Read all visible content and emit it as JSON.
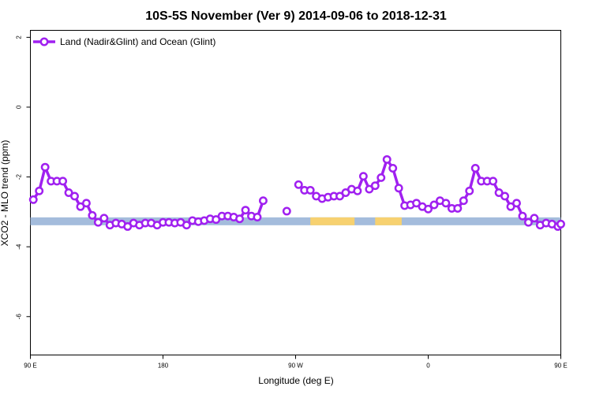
{
  "chart_data": {
    "type": "line",
    "title": "10S-5S November (Ver 9)   2014-09-06 to 2018-12-31",
    "xlabel": "Longitude (deg E)",
    "ylabel": "XCO2 - MLO trend (ppm)",
    "xlim": [
      90,
      450
    ],
    "ylim": [
      -7.1,
      2.2
    ],
    "y_ticks": [
      2,
      0,
      -2,
      -4,
      -6
    ],
    "x_ticks": [
      {
        "value": 90,
        "label": "90 E"
      },
      {
        "value": 180,
        "label": "180"
      },
      {
        "value": 270,
        "label": "90 W"
      },
      {
        "value": 360,
        "label": "0"
      },
      {
        "value": 450,
        "label": "90 E"
      },
      {
        "value": 540,
        "label": "180"
      }
    ],
    "legend": {
      "position": "top-left",
      "label": "Land (Nadir&Glint) and Ocean (Glint)"
    },
    "line_color": "#a020f0",
    "land_ocean_band": {
      "y": -3.27,
      "ocean_color": "#a4bcdc",
      "land_color": "#f7d170",
      "land_segments": [
        [
          280,
          310
        ],
        [
          324,
          342
        ]
      ]
    },
    "series": [
      {
        "name": "Land (Nadir&Glint) and Ocean (Glint)",
        "segments": [
          [
            [
              92,
              -2.65
            ],
            [
              96,
              -2.4
            ],
            [
              100,
              -1.72
            ],
            [
              104,
              -2.12
            ],
            [
              108,
              -2.12
            ],
            [
              112,
              -2.12
            ],
            [
              116,
              -2.45
            ],
            [
              120,
              -2.55
            ],
            [
              124,
              -2.85
            ],
            [
              128,
              -2.75
            ],
            [
              132,
              -3.1
            ],
            [
              136,
              -3.3
            ],
            [
              140,
              -3.18
            ],
            [
              144,
              -3.38
            ],
            [
              148,
              -3.32
            ],
            [
              152,
              -3.35
            ],
            [
              156,
              -3.42
            ],
            [
              160,
              -3.32
            ],
            [
              164,
              -3.38
            ],
            [
              168,
              -3.32
            ],
            [
              172,
              -3.32
            ],
            [
              176,
              -3.38
            ],
            [
              180,
              -3.3
            ],
            [
              184,
              -3.3
            ],
            [
              188,
              -3.32
            ],
            [
              192,
              -3.3
            ],
            [
              196,
              -3.38
            ],
            [
              200,
              -3.25
            ],
            [
              204,
              -3.28
            ],
            [
              208,
              -3.25
            ],
            [
              212,
              -3.2
            ],
            [
              216,
              -3.22
            ],
            [
              220,
              -3.12
            ],
            [
              224,
              -3.12
            ],
            [
              228,
              -3.15
            ],
            [
              232,
              -3.2
            ],
            [
              236,
              -2.95
            ],
            [
              240,
              -3.12
            ],
            [
              244,
              -3.15
            ],
            [
              248,
              -2.68
            ]
          ],
          [
            [
              264,
              -2.98
            ]
          ],
          [
            [
              272,
              -2.22
            ],
            [
              276,
              -2.38
            ],
            [
              280,
              -2.38
            ],
            [
              284,
              -2.55
            ],
            [
              288,
              -2.62
            ],
            [
              292,
              -2.58
            ],
            [
              296,
              -2.55
            ],
            [
              300,
              -2.55
            ],
            [
              304,
              -2.45
            ],
            [
              308,
              -2.35
            ],
            [
              312,
              -2.4
            ],
            [
              316,
              -1.98
            ],
            [
              320,
              -2.35
            ],
            [
              324,
              -2.25
            ],
            [
              328,
              -2.02
            ],
            [
              332,
              -1.5
            ],
            [
              336,
              -1.75
            ],
            [
              340,
              -2.32
            ],
            [
              344,
              -2.82
            ],
            [
              348,
              -2.8
            ],
            [
              352,
              -2.75
            ],
            [
              356,
              -2.85
            ],
            [
              360,
              -2.92
            ],
            [
              364,
              -2.8
            ],
            [
              368,
              -2.68
            ],
            [
              372,
              -2.75
            ],
            [
              376,
              -2.9
            ],
            [
              380,
              -2.9
            ],
            [
              384,
              -2.68
            ],
            [
              388,
              -2.4
            ],
            [
              392,
              -1.75
            ],
            [
              396,
              -2.12
            ],
            [
              400,
              -2.12
            ],
            [
              404,
              -2.12
            ],
            [
              408,
              -2.45
            ],
            [
              412,
              -2.55
            ],
            [
              416,
              -2.85
            ],
            [
              420,
              -2.75
            ],
            [
              424,
              -3.12
            ],
            [
              428,
              -3.3
            ],
            [
              432,
              -3.18
            ],
            [
              436,
              -3.38
            ],
            [
              440,
              -3.32
            ],
            [
              444,
              -3.35
            ],
            [
              448,
              -3.42
            ],
            [
              450,
              -3.35
            ]
          ]
        ]
      }
    ]
  }
}
